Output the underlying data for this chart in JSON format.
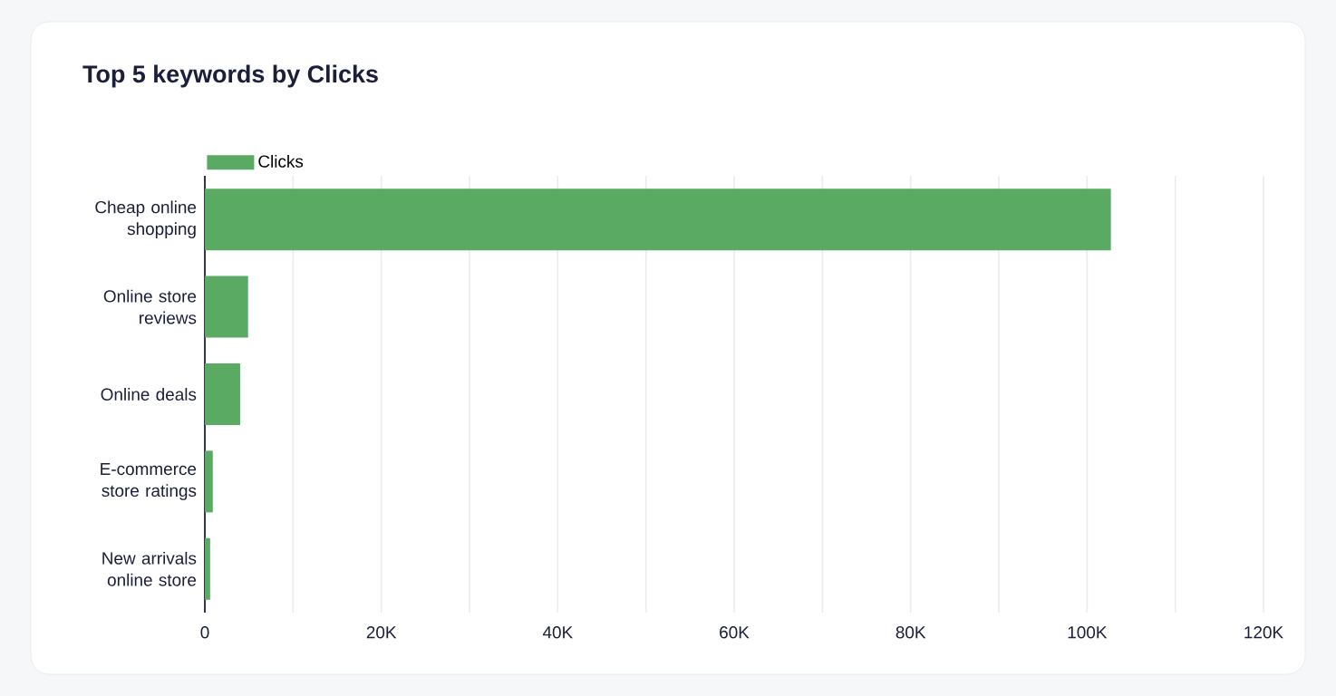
{
  "chart_data": {
    "type": "bar",
    "orientation": "horizontal",
    "title": "Top 5 keywords by Clicks",
    "categories": [
      "Cheap online shopping",
      "Online store reviews",
      "Online deals",
      "E-commerce store ratings",
      "New arrivals online store"
    ],
    "series": [
      {
        "name": "Clicks",
        "color": "#5aaa64",
        "values": [
          102700,
          4900,
          4000,
          900,
          600
        ]
      }
    ],
    "xlim": [
      0,
      120000
    ],
    "xticks": [
      0,
      {
        "value": 10000,
        "label": null
      },
      {
        "value": 20000,
        "label": "20K"
      },
      {
        "value": 30000,
        "label": null
      },
      {
        "value": 40000,
        "label": "40K"
      },
      {
        "value": 50000,
        "label": null
      },
      {
        "value": 60000,
        "label": "60K"
      },
      {
        "value": 70000,
        "label": null
      },
      {
        "value": 80000,
        "label": "80K"
      },
      {
        "value": 90000,
        "label": null
      },
      {
        "value": 100000,
        "label": "100K"
      },
      {
        "value": 110000,
        "label": null
      },
      {
        "value": 120000,
        "label": "120K"
      }
    ],
    "grid": "x",
    "legend": "top left"
  }
}
